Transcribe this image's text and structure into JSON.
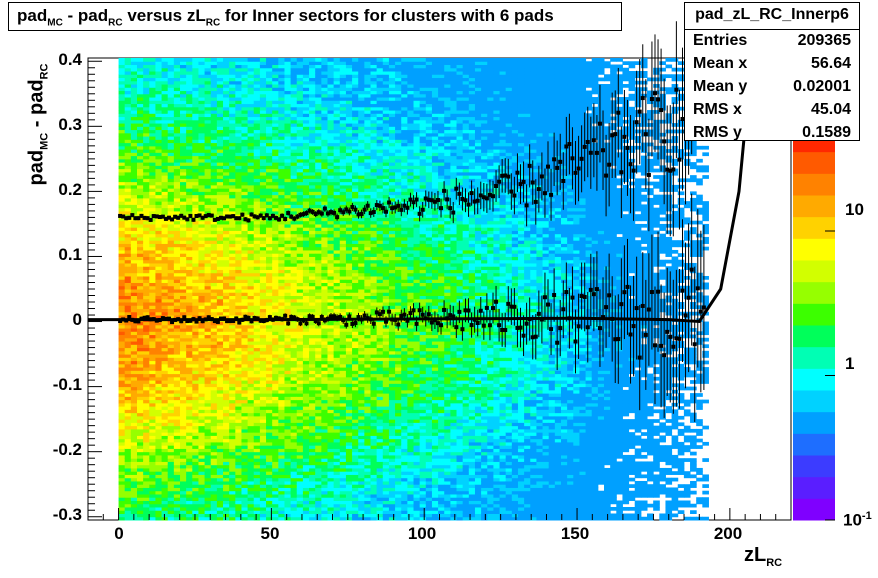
{
  "title": {
    "parts": [
      "pad",
      "MC",
      " - pad",
      "RC",
      " versus zL",
      "RC",
      " for Inner sectors for clusters with 6 pads"
    ]
  },
  "stats": {
    "name": "pad_zL_RC_Innerp6",
    "rows": [
      {
        "key": "Entries",
        "value": "209365"
      },
      {
        "key": "Mean x",
        "value": "56.64"
      },
      {
        "key": "Mean y",
        "value": "0.02001"
      },
      {
        "key": "RMS x",
        "value": "45.04"
      },
      {
        "key": "RMS y",
        "value": "0.1589"
      }
    ]
  },
  "axes": {
    "x_title_main": "zL",
    "x_title_sub": "RC",
    "y_title_main1": "pad",
    "y_title_sub1": "MC",
    "y_title_main2": " - pad",
    "y_title_sub2": "RC",
    "x_ticks": [
      "0",
      "50",
      "100",
      "150",
      "200"
    ],
    "y_ticks": [
      "0.4",
      "0.3",
      "0.2",
      "0.1",
      "0",
      "-0.1",
      "-0.2",
      "-0.3"
    ],
    "z_ticks": [
      "10",
      "1",
      "10"
    ],
    "z_tick_exp": "-1"
  },
  "chart_data": {
    "type": "heatmap",
    "x_range": [
      -10,
      220
    ],
    "y_range": [
      -0.305,
      0.405
    ],
    "z_scale": "log",
    "z_range": [
      0.1,
      50
    ],
    "heatmap_x_extent": [
      0,
      193
    ],
    "colors": [
      "#7f00ff",
      "#5a1eff",
      "#3c3cff",
      "#1e6eff",
      "#00a0ff",
      "#00d2ff",
      "#00ffff",
      "#00ffb4",
      "#00ff5a",
      "#3cff00",
      "#96ff00",
      "#d2ff00",
      "#ffff00",
      "#ffd200",
      "#ffaa00",
      "#ff8200",
      "#ff5a00",
      "#ff2800"
    ],
    "profiles": [
      {
        "name": "upper band",
        "y_at_x": [
          [
            0,
            0.16
          ],
          [
            50,
            0.16
          ],
          [
            100,
            0.18
          ],
          [
            130,
            0.2
          ],
          [
            150,
            0.24
          ],
          [
            180,
            0.3
          ]
        ]
      },
      {
        "name": "central band",
        "y_at_x": [
          [
            0,
            0.003
          ],
          [
            50,
            0.003
          ],
          [
            100,
            0.004
          ],
          [
            150,
            0.006
          ],
          [
            185,
            0.002
          ]
        ]
      }
    ],
    "fit_curve": [
      [
        -10,
        0.003
      ],
      [
        50,
        0.003
      ],
      [
        100,
        0.004
      ],
      [
        150,
        0.005
      ],
      [
        180,
        0.003
      ],
      [
        190,
        0.0
      ],
      [
        197,
        0.05
      ],
      [
        203,
        0.2
      ],
      [
        207,
        0.4
      ]
    ]
  }
}
